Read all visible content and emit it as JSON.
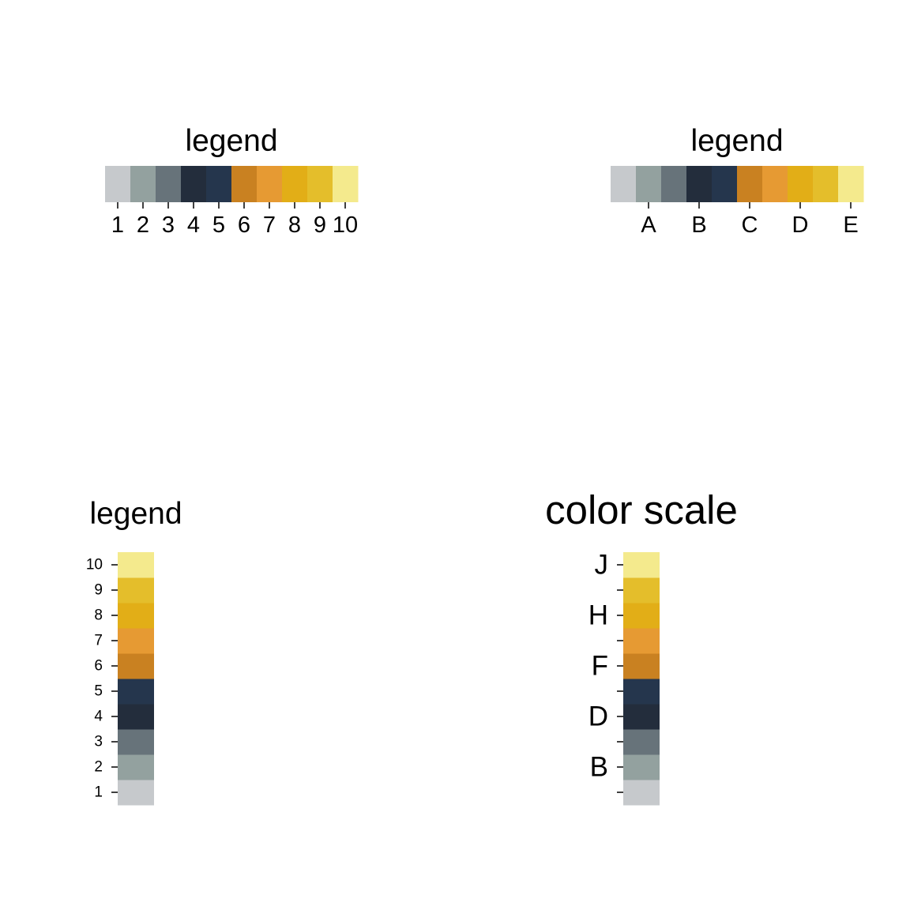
{
  "chart_data": [
    {
      "type": "legend",
      "orientation": "horizontal",
      "title": "legend",
      "colors": [
        "#c6c9cc",
        "#93a19f",
        "#67737a",
        "#232d3c",
        "#25364d",
        "#c98121",
        "#e69a33",
        "#e2ae17",
        "#e4be2b",
        "#f4ea8d"
      ],
      "tick_labels": [
        "1",
        "2",
        "3",
        "4",
        "5",
        "6",
        "7",
        "8",
        "9",
        "10"
      ],
      "tick_at": [
        1,
        2,
        3,
        4,
        5,
        6,
        7,
        8,
        9,
        10
      ]
    },
    {
      "type": "legend",
      "orientation": "horizontal",
      "title": "legend",
      "colors": [
        "#c6c9cc",
        "#93a19f",
        "#67737a",
        "#232d3c",
        "#25364d",
        "#c98121",
        "#e69a33",
        "#e2ae17",
        "#e4be2b",
        "#f4ea8d"
      ],
      "tick_labels": [
        "A",
        "B",
        "C",
        "D",
        "E"
      ],
      "tick_at": [
        2,
        4,
        6,
        8,
        10
      ]
    },
    {
      "type": "legend",
      "orientation": "vertical",
      "title": "legend",
      "colors": [
        "#c6c9cc",
        "#93a19f",
        "#67737a",
        "#232d3c",
        "#25364d",
        "#c98121",
        "#e69a33",
        "#e2ae17",
        "#e4be2b",
        "#f4ea8d"
      ],
      "tick_labels": [
        "1",
        "2",
        "3",
        "4",
        "5",
        "6",
        "7",
        "8",
        "9",
        "10"
      ],
      "tick_at": [
        1,
        2,
        3,
        4,
        5,
        6,
        7,
        8,
        9,
        10
      ]
    },
    {
      "type": "legend",
      "orientation": "vertical",
      "title": "color scale",
      "colors": [
        "#c6c9cc",
        "#93a19f",
        "#67737a",
        "#232d3c",
        "#25364d",
        "#c98121",
        "#e69a33",
        "#e2ae17",
        "#e4be2b",
        "#f4ea8d"
      ],
      "tick_labels": [
        "",
        "B",
        "",
        "D",
        "",
        "F",
        "",
        "H",
        "",
        "J"
      ],
      "tick_at": [
        1,
        2,
        3,
        4,
        5,
        6,
        7,
        8,
        9,
        10
      ]
    }
  ]
}
